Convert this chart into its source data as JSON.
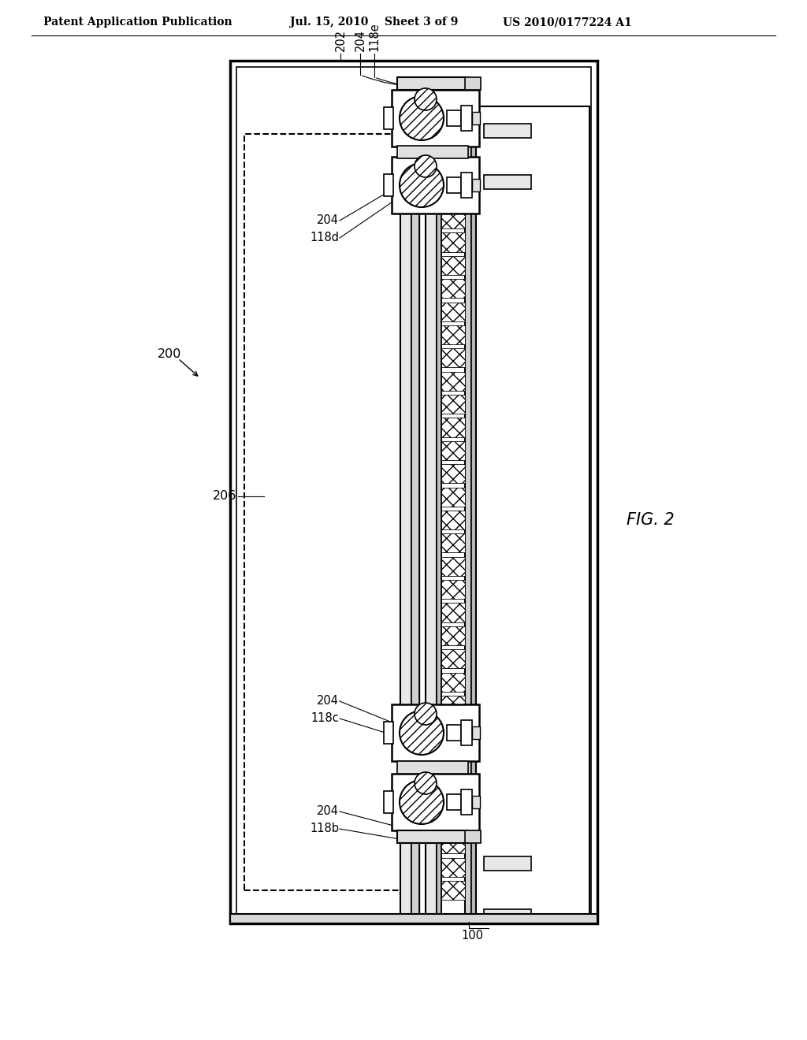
{
  "bg_color": "#ffffff",
  "line_color": "#000000",
  "header_text": "Patent Application Publication",
  "header_date": "Jul. 15, 2010",
  "header_sheet": "Sheet 3 of 9",
  "header_patent": "US 2010/0177224 A1",
  "fig_label": "FIG. 2",
  "label_200": "200",
  "label_202": "202",
  "label_204": "204",
  "label_118e": "118e",
  "label_118d": "118d",
  "label_118c": "118c",
  "label_118b": "118b",
  "label_206": "206",
  "label_100": "100"
}
